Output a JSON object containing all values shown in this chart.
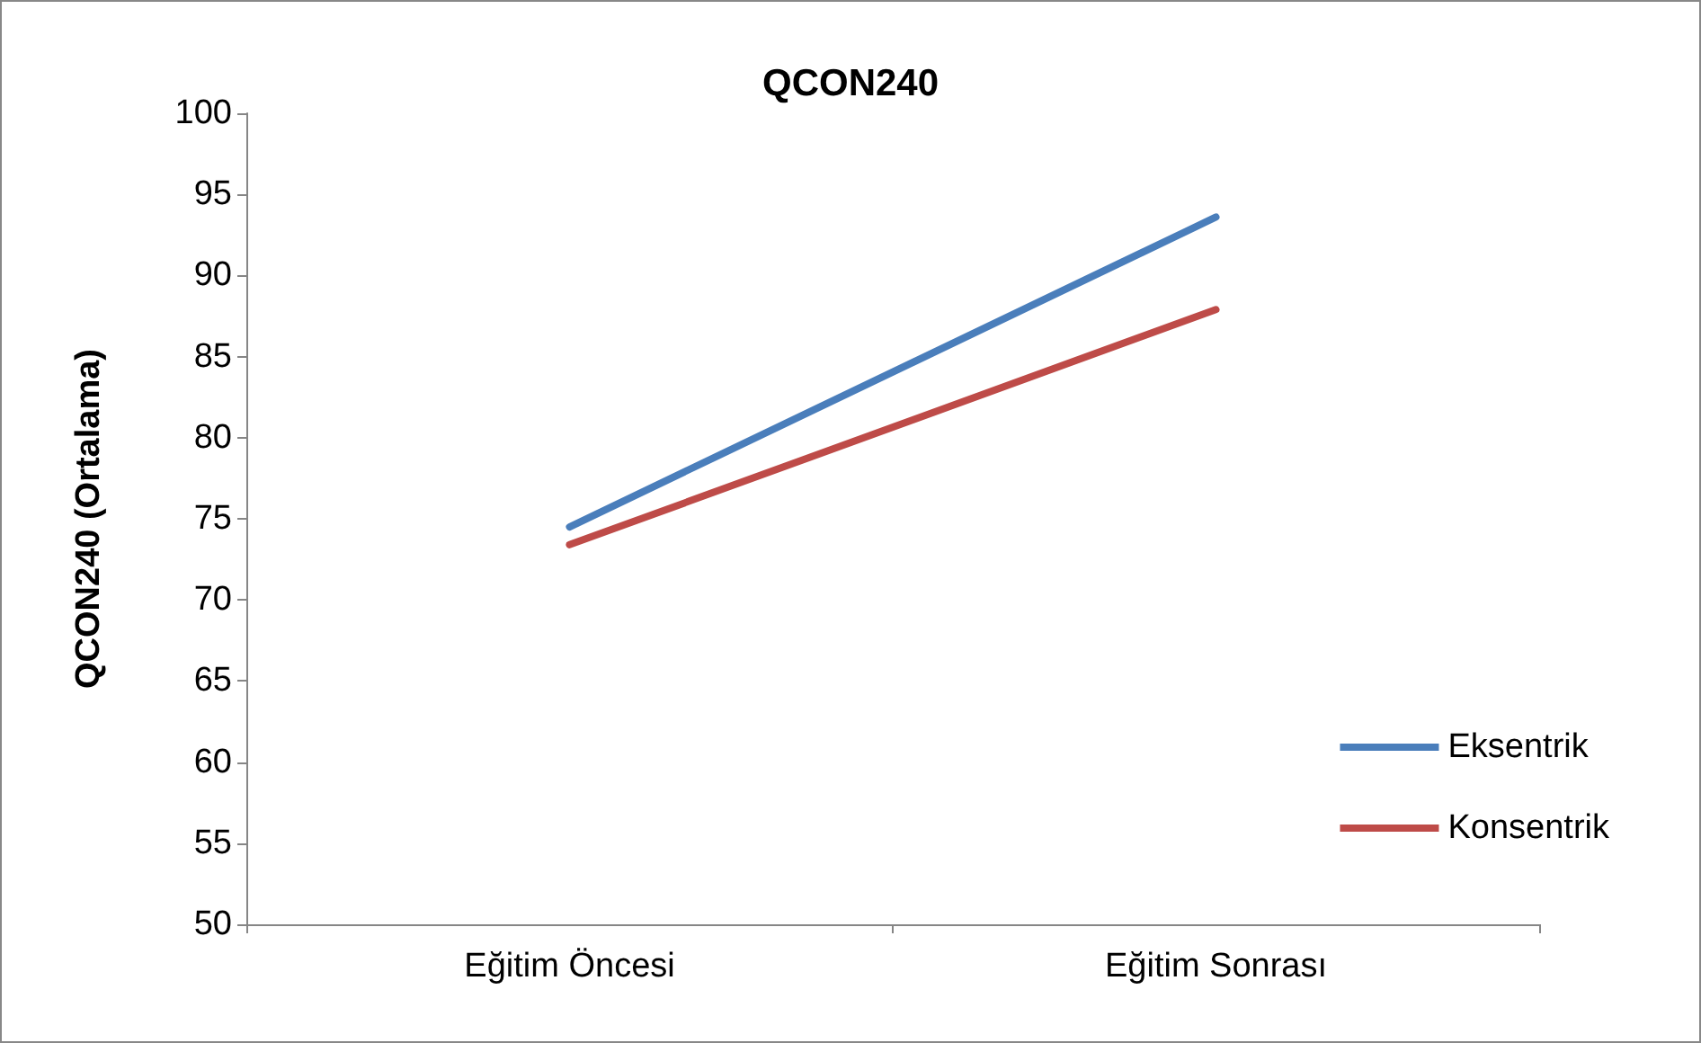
{
  "chart_data": {
    "type": "line",
    "title": "QCON240",
    "ylabel": "QCON240 (Ortalama)",
    "categories": [
      "Eğitim Öncesi",
      "Eğitim Sonrası"
    ],
    "series": [
      {
        "name": "Eksentrik",
        "color": "#4a7ebb",
        "values": [
          74.5,
          93.6
        ]
      },
      {
        "name": "Konsentrik",
        "color": "#be4b48",
        "values": [
          73.4,
          87.9
        ]
      }
    ],
    "ylim": [
      50,
      100
    ],
    "yticks": [
      50,
      55,
      60,
      65,
      70,
      75,
      80,
      85,
      90,
      95,
      100
    ],
    "grid": false,
    "legend": "right",
    "marker": "none"
  }
}
